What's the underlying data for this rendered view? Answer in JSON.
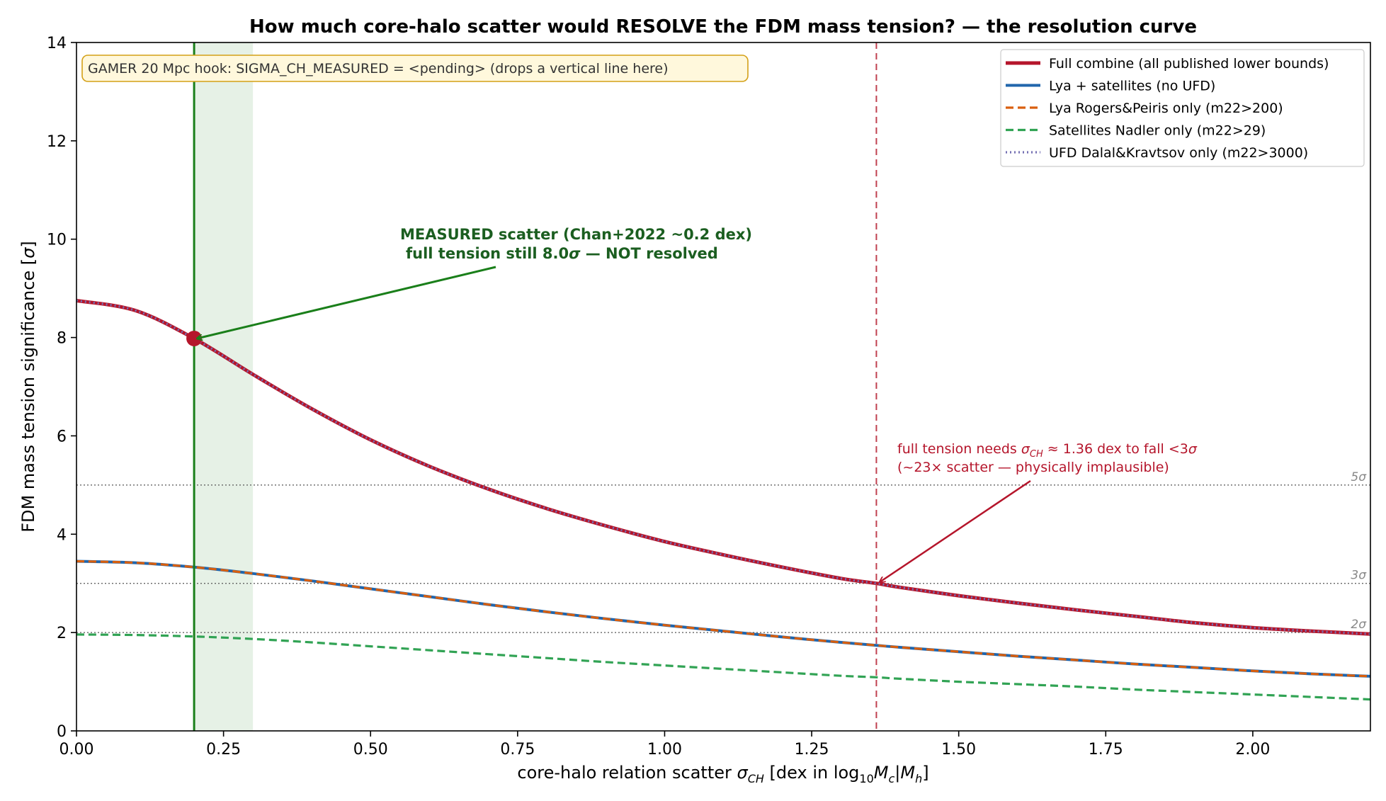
{
  "chart_data": {
    "type": "line",
    "title": "How much core-halo scatter would RESOLVE the FDM mass tension?  —  the resolution curve",
    "xlabel": {
      "prefix": "core-halo relation scatter  ",
      "sym": "σ",
      "sub": "CH",
      "suffix_a": "  [dex in log",
      "log_sub": "10",
      "suffix_b": "M",
      "m_sub1": "c",
      "bar": "|M",
      "m_sub2": "h",
      "close": "]"
    },
    "ylabel": {
      "text": "FDM mass tension significance  [",
      "sym": "σ",
      "close": "]"
    },
    "xlim": [
      0,
      2.2
    ],
    "ylim": [
      0,
      14
    ],
    "xticks": [
      0,
      0.25,
      0.5,
      0.75,
      1.0,
      1.25,
      1.5,
      1.75,
      2.0
    ],
    "xtick_labels": [
      "0.00",
      "0.25",
      "0.50",
      "0.75",
      "1.00",
      "1.25",
      "1.50",
      "1.75",
      "2.00"
    ],
    "yticks": [
      0,
      2,
      4,
      6,
      8,
      10,
      12,
      14
    ],
    "ytick_labels": [
      "0",
      "2",
      "4",
      "6",
      "8",
      "10",
      "12",
      "14"
    ],
    "grid": false,
    "legend_position": "top-right",
    "x": [
      0,
      0.1,
      0.2,
      0.3,
      0.4,
      0.5,
      0.6,
      0.7,
      0.8,
      0.9,
      1.0,
      1.1,
      1.2,
      1.3,
      1.36,
      1.4,
      1.5,
      1.6,
      1.7,
      1.8,
      1.9,
      2.0,
      2.1,
      2.2
    ],
    "series": [
      {
        "name": "Full combine (all published lower bounds)",
        "color": "#b5152b",
        "style": "solid-thick",
        "values": [
          8.75,
          8.55,
          7.98,
          7.25,
          6.55,
          5.92,
          5.38,
          4.92,
          4.52,
          4.17,
          3.85,
          3.58,
          3.33,
          3.1,
          3.0,
          2.92,
          2.75,
          2.6,
          2.46,
          2.33,
          2.2,
          2.1,
          2.03,
          1.97
        ]
      },
      {
        "name": "Lya + satellites (no UFD)",
        "color": "#2166ac",
        "style": "solid",
        "values": [
          3.45,
          3.42,
          3.33,
          3.2,
          3.05,
          2.89,
          2.73,
          2.57,
          2.42,
          2.28,
          2.15,
          2.03,
          1.91,
          1.8,
          1.74,
          1.7,
          1.61,
          1.52,
          1.44,
          1.36,
          1.29,
          1.22,
          1.16,
          1.11
        ]
      },
      {
        "name": "Lya Rogers&Peiris only (m22>200)",
        "color": "#d95f0e",
        "style": "dashed",
        "values": [
          3.45,
          3.42,
          3.33,
          3.2,
          3.05,
          2.89,
          2.73,
          2.57,
          2.42,
          2.28,
          2.15,
          2.03,
          1.91,
          1.8,
          1.74,
          1.7,
          1.61,
          1.52,
          1.44,
          1.36,
          1.29,
          1.22,
          1.16,
          1.11
        ]
      },
      {
        "name": "Satellites Nadler only (m22>29)",
        "color": "#31a354",
        "style": "dashed",
        "values": [
          1.96,
          1.95,
          1.92,
          1.87,
          1.8,
          1.72,
          1.64,
          1.56,
          1.48,
          1.4,
          1.33,
          1.26,
          1.19,
          1.12,
          1.09,
          1.06,
          1.0,
          0.95,
          0.9,
          0.84,
          0.79,
          0.74,
          0.69,
          0.64
        ]
      },
      {
        "name": "UFD Dalal&Kravtsov only (m22>3000)",
        "color": "#7570b3",
        "style": "dotted",
        "values": [
          8.75,
          8.55,
          7.98,
          7.25,
          6.55,
          5.92,
          5.38,
          4.92,
          4.52,
          4.17,
          3.85,
          3.58,
          3.33,
          3.1,
          3.0,
          2.92,
          2.75,
          2.6,
          2.46,
          2.33,
          2.2,
          2.1,
          2.03,
          1.97
        ]
      }
    ],
    "hlines": [
      {
        "y": 5,
        "label": "5σ"
      },
      {
        "y": 3,
        "label": "3σ"
      },
      {
        "y": 2,
        "label": "2σ"
      }
    ],
    "measured": {
      "x": 0.2,
      "band": [
        0.2,
        0.3
      ],
      "y": 7.98,
      "color": "#1a7f1a"
    },
    "resolution_line": {
      "x": 1.36,
      "y": 3.0,
      "color": "#c0404f"
    },
    "annotations": {
      "hook_box": "GAMER 20 Mpc hook:  SIGMA_CH_MEASURED = <pending>  (drops a vertical line here)",
      "measured_line1": "MEASURED scatter (Chan+2022 ~0.2 dex)",
      "measured_line2a": "full tension still 8.0",
      "measured_sym": "σ",
      "measured_line2b": " — NOT resolved",
      "res_line1a": "full tension needs ",
      "res_sym": "σ",
      "res_sub": "CH",
      "res_line1b": " ≈ 1.36 dex to fall <3",
      "res_sym2": "σ",
      "res_line2": "(~23× scatter — physically implausible)"
    }
  }
}
